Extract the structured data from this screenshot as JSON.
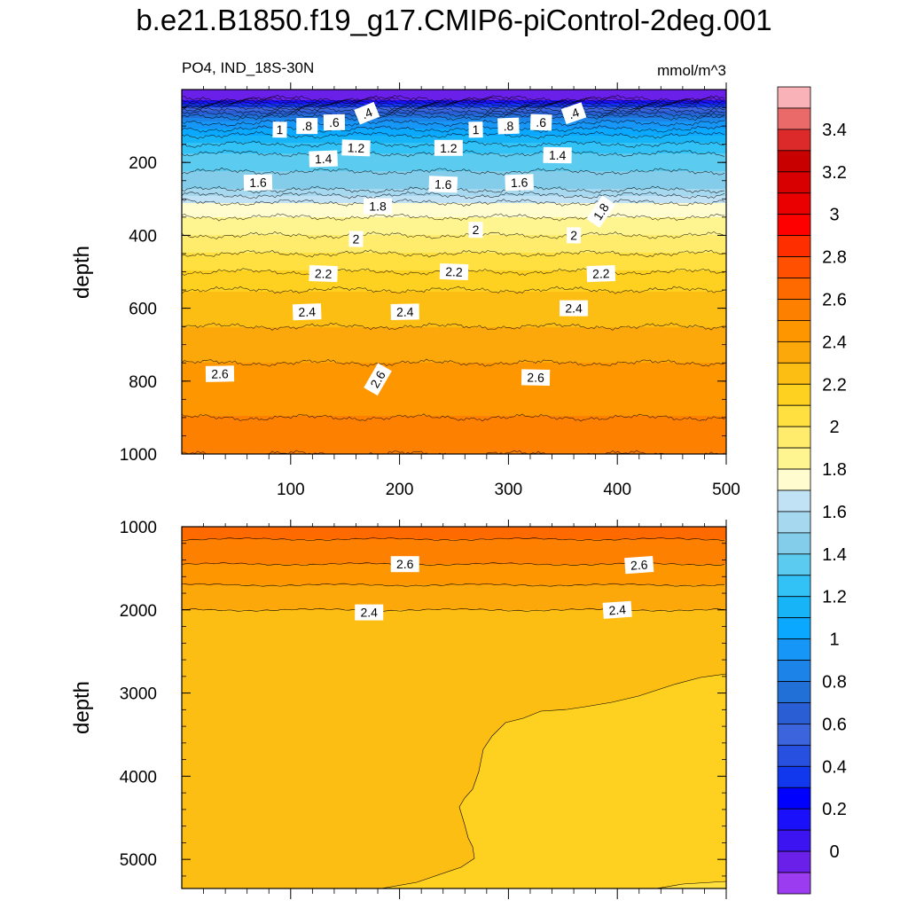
{
  "title": "b.e21.B1850.f19_g17.CMIP6-piControl-2deg.001",
  "subtitle_left": "PO4, IND_18S-30N",
  "units": "mmol/m^3",
  "colors": {
    "levels": [
      {
        "level": -0.1,
        "color": "#9b3cf0"
      },
      {
        "level": 0.0,
        "color": "#6a20e8"
      },
      {
        "level": 0.1,
        "color": "#3c14f2"
      },
      {
        "level": 0.2,
        "color": "#1a10fa"
      },
      {
        "level": 0.3,
        "color": "#0000ff"
      },
      {
        "level": 0.4,
        "color": "#1238ee"
      },
      {
        "level": 0.5,
        "color": "#2850e0"
      },
      {
        "level": 0.6,
        "color": "#3c64dc"
      },
      {
        "level": 0.7,
        "color": "#2a5ed4"
      },
      {
        "level": 0.8,
        "color": "#2070d8"
      },
      {
        "level": 0.9,
        "color": "#1c84e8"
      },
      {
        "level": 1.0,
        "color": "#1696f6"
      },
      {
        "level": 1.1,
        "color": "#0aa8ff"
      },
      {
        "level": 1.2,
        "color": "#18b4f8"
      },
      {
        "level": 1.3,
        "color": "#32c2f6"
      },
      {
        "level": 1.4,
        "color": "#5ccbf0"
      },
      {
        "level": 1.5,
        "color": "#84cdea"
      },
      {
        "level": 1.6,
        "color": "#a6d8f0"
      },
      {
        "level": 1.7,
        "color": "#c0e2f4"
      },
      {
        "level": 1.8,
        "color": "#fffcd0"
      },
      {
        "level": 1.9,
        "color": "#fff590"
      },
      {
        "level": 2.0,
        "color": "#ffec6c"
      },
      {
        "level": 2.1,
        "color": "#ffe040"
      },
      {
        "level": 2.2,
        "color": "#fed020"
      },
      {
        "level": 2.3,
        "color": "#fdbe14"
      },
      {
        "level": 2.4,
        "color": "#fda80a"
      },
      {
        "level": 2.5,
        "color": "#fe9600"
      },
      {
        "level": 2.6,
        "color": "#fe8000"
      },
      {
        "level": 2.7,
        "color": "#fe6a00"
      },
      {
        "level": 2.8,
        "color": "#fe5000"
      },
      {
        "level": 2.9,
        "color": "#fe2e00"
      },
      {
        "level": 3.0,
        "color": "#ff0000"
      },
      {
        "level": 3.1,
        "color": "#ea0000"
      },
      {
        "level": 3.2,
        "color": "#d80000"
      },
      {
        "level": 3.3,
        "color": "#c80000"
      },
      {
        "level": 3.4,
        "color": "#dc2a2a"
      },
      {
        "level": 3.5,
        "color": "#ea6a6a"
      },
      {
        "level": 3.6,
        "color": "#f8b2b8"
      }
    ]
  },
  "chart_data": [
    {
      "type": "contour",
      "panel": "upper",
      "ylabel": "depth",
      "xlim": [
        0,
        500
      ],
      "ylim": [
        1000,
        0
      ],
      "x_ticks": [
        100,
        200,
        300,
        400,
        500
      ],
      "y_ticks": [
        200,
        400,
        600,
        800,
        1000
      ],
      "x_tick_labels": [
        "100",
        "200",
        "300",
        "400",
        "500"
      ],
      "y_tick_labels": [
        "200",
        "400",
        "600",
        "800",
        "1000"
      ],
      "profile": [
        [
          0,
          0.05
        ],
        [
          25,
          0.1
        ],
        [
          50,
          0.6
        ],
        [
          75,
          0.9
        ],
        [
          100,
          1.05
        ],
        [
          125,
          1.2
        ],
        [
          150,
          1.3
        ],
        [
          175,
          1.4
        ],
        [
          200,
          1.45
        ],
        [
          225,
          1.5
        ],
        [
          250,
          1.55
        ],
        [
          275,
          1.6
        ],
        [
          290,
          1.7
        ],
        [
          310,
          1.8
        ],
        [
          350,
          1.9
        ],
        [
          400,
          2.0
        ],
        [
          450,
          2.1
        ],
        [
          500,
          2.2
        ],
        [
          550,
          2.3
        ],
        [
          600,
          2.35
        ],
        [
          650,
          2.4
        ],
        [
          700,
          2.45
        ],
        [
          750,
          2.5
        ],
        [
          800,
          2.55
        ],
        [
          850,
          2.58
        ],
        [
          900,
          2.6
        ],
        [
          950,
          2.65
        ],
        [
          1000,
          2.7
        ]
      ],
      "contour_labels": [
        {
          "text": ".4",
          "x": 170,
          "depth": 65
        },
        {
          "text": ".6",
          "x": 140,
          "depth": 90
        },
        {
          "text": ".8",
          "x": 115,
          "depth": 100
        },
        {
          "text": "1",
          "x": 90,
          "depth": 110
        },
        {
          "text": "1.2",
          "x": 160,
          "depth": 160
        },
        {
          "text": "1.4",
          "x": 130,
          "depth": 190
        },
        {
          "text": "1.6",
          "x": 70,
          "depth": 255
        },
        {
          "text": "1.8",
          "x": 180,
          "depth": 320
        },
        {
          "text": "2",
          "x": 160,
          "depth": 410
        },
        {
          "text": "2.2",
          "x": 130,
          "depth": 505
        },
        {
          "text": "2.4",
          "x": 115,
          "depth": 610
        },
        {
          "text": "2.6",
          "x": 35,
          "depth": 780
        },
        {
          "text": "2.6",
          "x": 180,
          "depth": 795
        },
        {
          "text": ".4",
          "x": 360,
          "depth": 65
        },
        {
          "text": ".6",
          "x": 330,
          "depth": 90
        },
        {
          "text": ".8",
          "x": 300,
          "depth": 100
        },
        {
          "text": "1",
          "x": 270,
          "depth": 110
        },
        {
          "text": "1.2",
          "x": 245,
          "depth": 160
        },
        {
          "text": "1.4",
          "x": 345,
          "depth": 180
        },
        {
          "text": "1.6",
          "x": 240,
          "depth": 260
        },
        {
          "text": "1.6",
          "x": 310,
          "depth": 255
        },
        {
          "text": "1.8",
          "x": 385,
          "depth": 335
        },
        {
          "text": "2",
          "x": 270,
          "depth": 385
        },
        {
          "text": "2",
          "x": 360,
          "depth": 400
        },
        {
          "text": "2.2",
          "x": 250,
          "depth": 500
        },
        {
          "text": "2.2",
          "x": 385,
          "depth": 505
        },
        {
          "text": "2.4",
          "x": 205,
          "depth": 610
        },
        {
          "text": "2.4",
          "x": 360,
          "depth": 600
        },
        {
          "text": "2.6",
          "x": 325,
          "depth": 790
        }
      ]
    },
    {
      "type": "contour",
      "panel": "lower",
      "ylabel": "depth",
      "xlim": [
        0,
        500
      ],
      "ylim": [
        5350,
        1000
      ],
      "y_ticks": [
        1000,
        2000,
        3000,
        4000,
        5000
      ],
      "y_tick_labels": [
        "1000",
        "2000",
        "3000",
        "4000",
        "5000"
      ],
      "bands": [
        {
          "from_depth": 1000,
          "to_depth": 1150,
          "value": 2.7
        },
        {
          "from_depth": 1150,
          "to_depth": 1450,
          "value": 2.65
        },
        {
          "from_depth": 1450,
          "to_depth": 1700,
          "value": 2.55
        },
        {
          "from_depth": 1700,
          "to_depth": 2000,
          "value": 2.45
        },
        {
          "from_depth": 2000,
          "to_depth": 5350,
          "value": 2.35
        }
      ],
      "region_below_2_3": {
        "value": 2.25
      },
      "contour_labels": [
        {
          "text": "2.6",
          "x": 205,
          "depth": 1450
        },
        {
          "text": "2.6",
          "x": 420,
          "depth": 1460
        },
        {
          "text": "2.4",
          "x": 172,
          "depth": 2030
        },
        {
          "text": "2.4",
          "x": 400,
          "depth": 2000
        }
      ]
    }
  ],
  "colorbar": {
    "labels": [
      "3.4",
      "3.2",
      "3",
      "2.8",
      "2.6",
      "2.4",
      "2.2",
      "2",
      "1.8",
      "1.6",
      "1.4",
      "1.2",
      "1",
      "0.8",
      "0.6",
      "0.4",
      "0.2",
      "0"
    ]
  }
}
